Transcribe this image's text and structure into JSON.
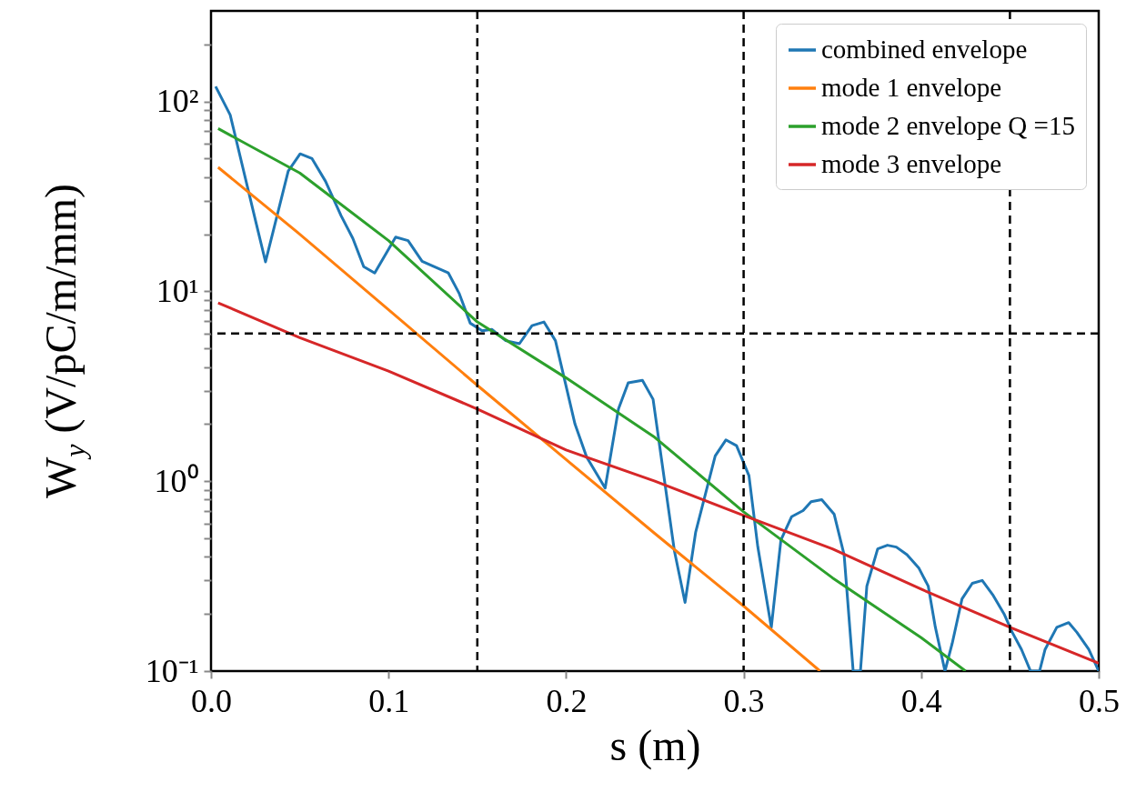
{
  "chart_data": {
    "type": "line",
    "xlabel": "s (m)",
    "ylabel": "W$_{y}$ (V/pC/m/mm)",
    "xlim": [
      0,
      0.5
    ],
    "xticks": [
      {
        "value": 0,
        "label": "0.0"
      },
      0.1,
      0.2,
      0.3,
      0.4,
      0.5
    ],
    "ylim": [
      0.1,
      300
    ],
    "log": "y",
    "yticks": [
      {
        "value": 0.1,
        "label": "10⁻¹"
      },
      {
        "value": 0.2,
        "label": null
      },
      {
        "value": 0.3,
        "label": null
      },
      {
        "value": 0.4,
        "label": null
      },
      {
        "value": 0.5,
        "label": null
      },
      {
        "value": 0.6,
        "label": null
      },
      {
        "value": 0.7,
        "label": null
      },
      {
        "value": 0.8,
        "label": null
      },
      {
        "value": 0.9,
        "label": null
      },
      {
        "value": 1,
        "label": "10⁰"
      },
      {
        "value": 2,
        "label": null
      },
      {
        "value": 3,
        "label": null
      },
      {
        "value": 4,
        "label": null
      },
      {
        "value": 5,
        "label": null
      },
      {
        "value": 6,
        "label": null
      },
      {
        "value": 7,
        "label": null
      },
      {
        "value": 8,
        "label": null
      },
      {
        "value": 9,
        "label": null
      },
      {
        "value": 10,
        "label": "10¹"
      },
      {
        "value": 20,
        "label": null
      },
      {
        "value": 30,
        "label": null
      },
      {
        "value": 40,
        "label": null
      },
      {
        "value": 50,
        "label": null
      },
      {
        "value": 60,
        "label": null
      },
      {
        "value": 70,
        "label": null
      },
      {
        "value": 80,
        "label": null
      },
      {
        "value": 90,
        "label": null
      },
      {
        "value": 100,
        "label": "10²"
      },
      {
        "value": 200,
        "label": null
      }
    ],
    "grid": false,
    "legend": "top right",
    "marker": "none",
    "line_style": "solid",
    "ref_lines": [
      {
        "axis": "x",
        "value": 0.15,
        "color": "#000000",
        "line_style": "dashed"
      },
      {
        "axis": "x",
        "value": 0.3,
        "color": "#000000",
        "line_style": "dashed"
      },
      {
        "axis": "x",
        "value": 0.45,
        "color": "#000000",
        "line_style": "dashed"
      },
      {
        "axis": "y",
        "value": 6,
        "color": "#000000",
        "line_style": "dashed"
      }
    ],
    "series": [
      {
        "name": "combined envelope",
        "color": "#1f77b4",
        "x": [
          0.0026,
          0.0108,
          0.0256,
          0.0307,
          0.0435,
          0.0502,
          0.0569,
          0.0645,
          0.0733,
          0.0799,
          0.086,
          0.0922,
          0.104,
          0.111,
          0.1189,
          0.1337,
          0.1399,
          0.146,
          0.1527,
          0.1583,
          0.166,
          0.1737,
          0.1808,
          0.1875,
          0.194,
          0.205,
          0.2116,
          0.222,
          0.2295,
          0.235,
          0.243,
          0.249,
          0.261,
          0.267,
          0.273,
          0.284,
          0.29,
          0.296,
          0.303,
          0.308,
          0.3156,
          0.321,
          0.327,
          0.3335,
          0.338,
          0.344,
          0.351,
          0.3566,
          0.3617,
          0.3658,
          0.3694,
          0.3755,
          0.381,
          0.386,
          0.392,
          0.3986,
          0.404,
          0.408,
          0.4134,
          0.4175,
          0.423,
          0.4288,
          0.4344,
          0.4406,
          0.4467,
          0.4513,
          0.4565,
          0.4616,
          0.4667,
          0.4698,
          0.4764,
          0.4831,
          0.4877,
          0.4944,
          0.5
        ],
        "values": [
          120,
          85,
          22.5,
          14.3,
          43,
          53,
          50,
          38,
          25,
          19,
          13.5,
          12.5,
          19.3,
          18.5,
          14.4,
          12.5,
          9.7,
          6.8,
          6.2,
          6.3,
          5.5,
          5.3,
          6.6,
          6.9,
          5.5,
          2.0,
          1.34,
          0.92,
          2.4,
          3.3,
          3.4,
          2.7,
          0.43,
          0.23,
          0.54,
          1.36,
          1.65,
          1.54,
          1.07,
          0.45,
          0.17,
          0.49,
          0.65,
          0.7,
          0.78,
          0.8,
          0.67,
          0.41,
          0.1,
          0.1,
          0.28,
          0.44,
          0.46,
          0.45,
          0.41,
          0.35,
          0.28,
          0.17,
          0.1,
          0.14,
          0.24,
          0.29,
          0.3,
          0.25,
          0.2,
          0.16,
          0.13,
          0.1,
          0.1,
          0.13,
          0.17,
          0.18,
          0.16,
          0.13,
          0.1
        ]
      },
      {
        "name": "mode 1 envelope",
        "color": "#ff7f0e",
        "x": [
          0.004,
          0.05,
          0.1,
          0.15,
          0.2,
          0.25,
          0.3,
          0.343
        ],
        "values": [
          45,
          20,
          8.0,
          3.2,
          1.3,
          0.53,
          0.22,
          0.1
        ]
      },
      {
        "name": "mode 2 envelope Q =15",
        "color": "#2ca02c",
        "x": [
          0.004,
          0.05,
          0.1,
          0.15,
          0.2,
          0.25,
          0.3,
          0.35,
          0.4,
          0.425
        ],
        "values": [
          72,
          42,
          18.5,
          6.9,
          3.5,
          1.7,
          0.69,
          0.31,
          0.15,
          0.1
        ]
      },
      {
        "name": "mode 3 envelope",
        "color": "#d62728",
        "x": [
          0.004,
          0.05,
          0.1,
          0.15,
          0.2,
          0.25,
          0.3,
          0.35,
          0.4,
          0.45,
          0.5
        ],
        "values": [
          8.7,
          5.7,
          3.8,
          2.4,
          1.46,
          1.0,
          0.66,
          0.44,
          0.27,
          0.17,
          0.11
        ]
      }
    ]
  }
}
